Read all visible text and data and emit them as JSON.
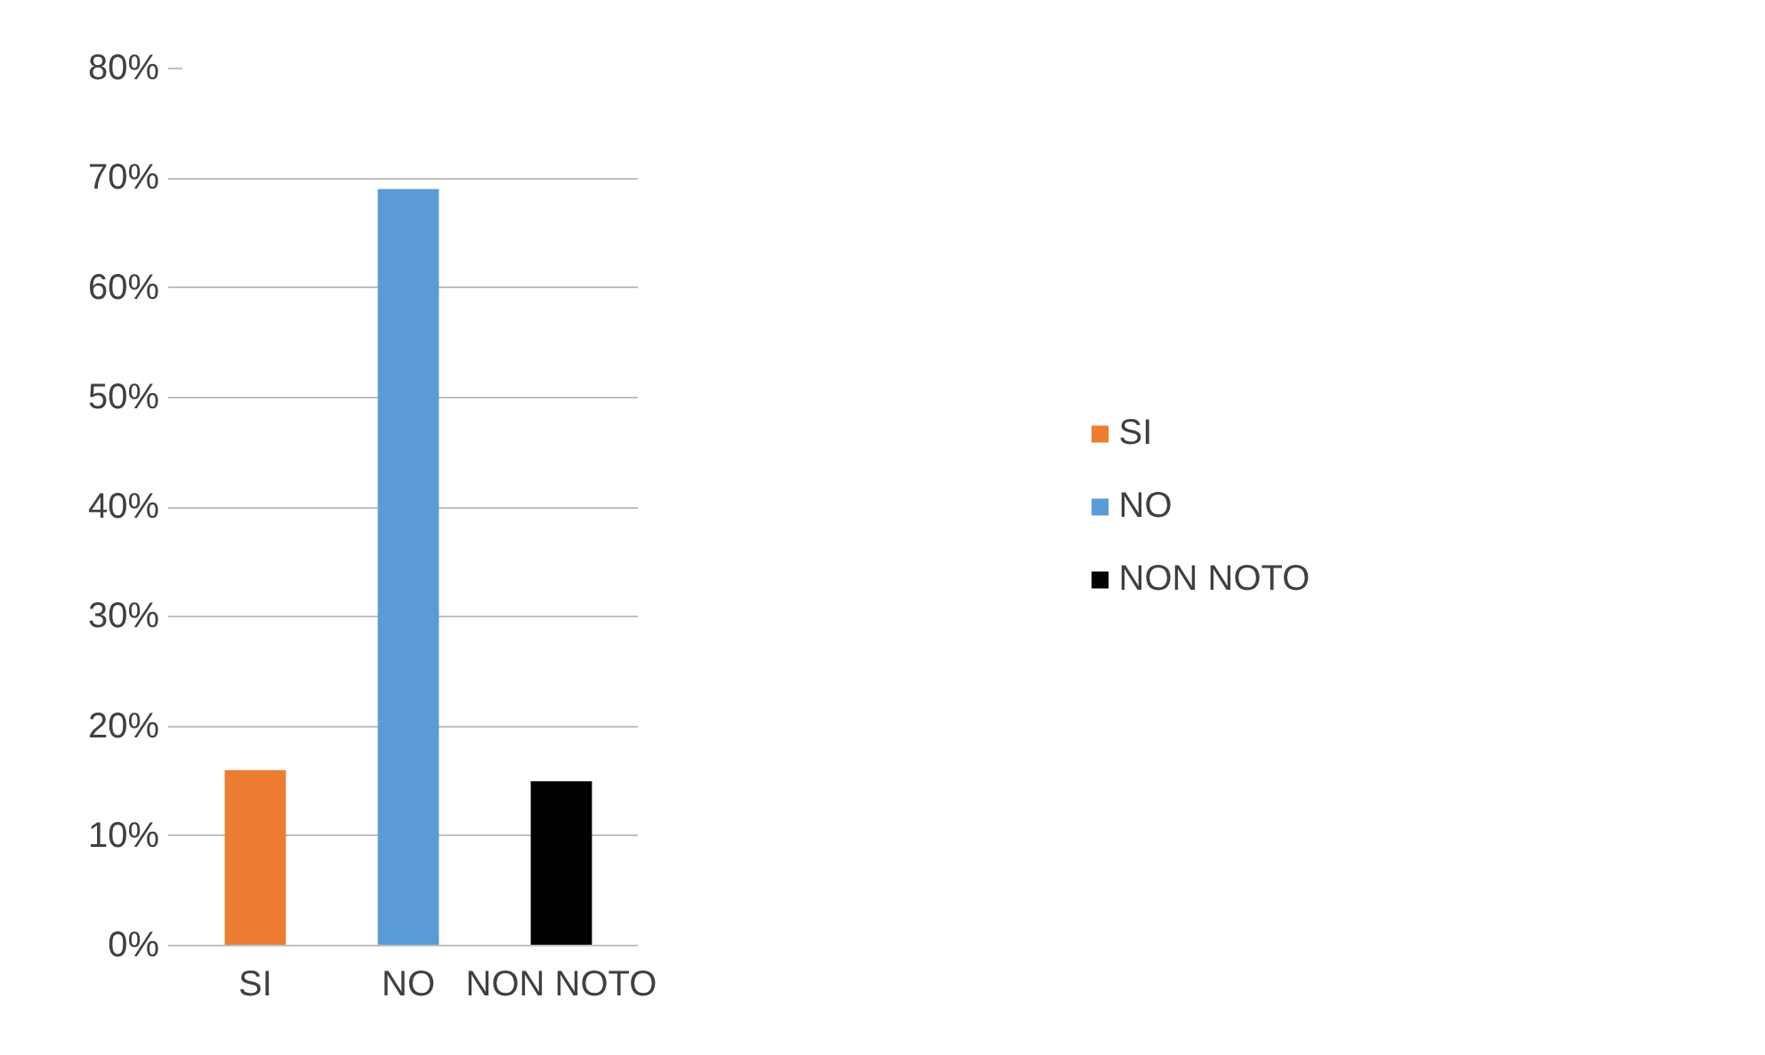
{
  "chart_data": {
    "type": "bar",
    "stacked": true,
    "categories": [
      "SI",
      "NO",
      "NON NOTO"
    ],
    "series": [
      {
        "name": "SI",
        "color": "#ed7d31",
        "values": [
          16,
          null,
          null
        ]
      },
      {
        "name": "NO",
        "color": "#5b9bd5",
        "values": [
          null,
          69,
          null
        ]
      },
      {
        "name": "NON NOTO",
        "color": "#000000",
        "values": [
          null,
          null,
          15
        ]
      }
    ],
    "ylim": [
      0,
      80
    ],
    "yticks": [
      {
        "value": 0,
        "label": "0%"
      },
      {
        "value": 10,
        "label": "10%"
      },
      {
        "value": 20,
        "label": "20%"
      },
      {
        "value": 30,
        "label": "30%"
      },
      {
        "value": 40,
        "label": "40%"
      },
      {
        "value": 50,
        "label": "50%"
      },
      {
        "value": 60,
        "label": "60%"
      },
      {
        "value": 70,
        "label": "70%"
      },
      {
        "value": 80,
        "label": "80%"
      }
    ],
    "grid": "y",
    "legend": "right"
  }
}
